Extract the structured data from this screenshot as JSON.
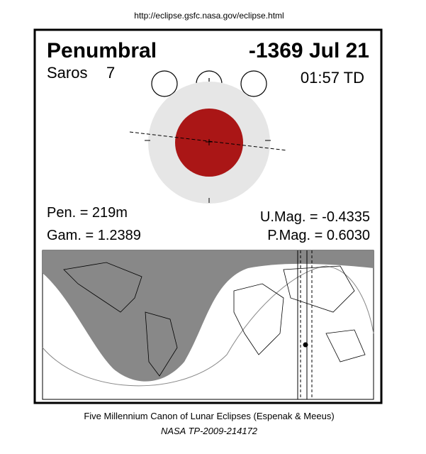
{
  "header": {
    "url": "http://eclipse.gsfc.nasa.gov/eclipse.html"
  },
  "eclipse": {
    "type": "Penumbral",
    "date": "-1369 Jul 21",
    "saros_label": "Saros",
    "saros_number": "7",
    "time": "01:57 TD",
    "pen": "Pen. = 219m",
    "gam": "Gam. = 1.2389",
    "umag": "U.Mag. = -0.4335",
    "pmag": "P.Mag. = 0.6030"
  },
  "footer": {
    "line1": "Five Millennium Canon of Lunar Eclipses (Espenak & Meeus)",
    "line2": "NASA TP-2009-214172"
  }
}
